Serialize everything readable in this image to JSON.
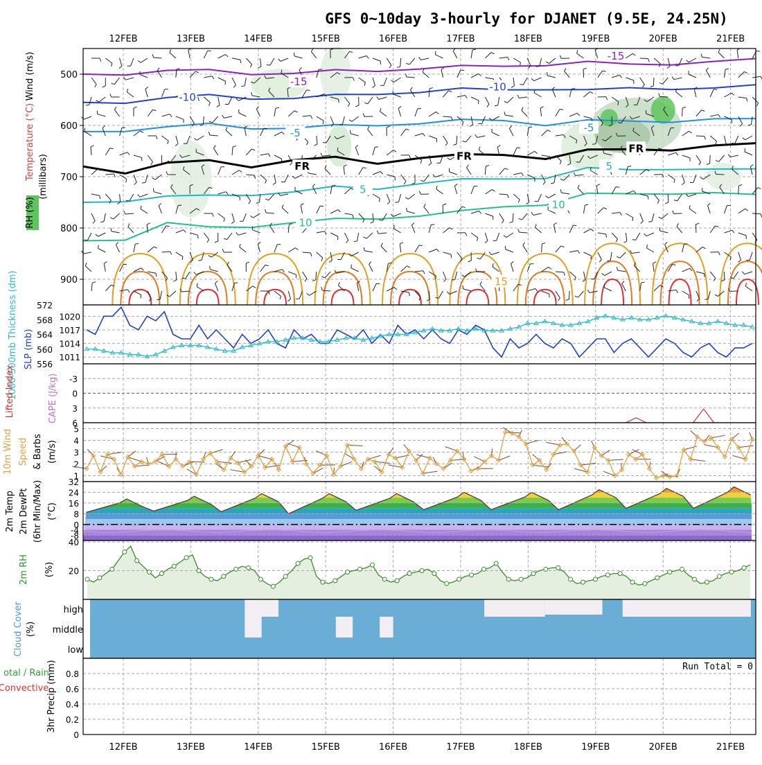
{
  "title": "GFS 0~10day 3-hourly for DJANET (9.5E, 24.25N)",
  "colors": {
    "frame": "#000000",
    "grid": "#a8a8a8",
    "slp": "#1f3fd0",
    "thickness": "#2bbcc8",
    "wind10m": "#e0a040",
    "barb": "#7a4a2a",
    "rh2m_line": "#3a8a2a",
    "rh2m_fill": "#e4efe0",
    "cloud": "#6aaed6",
    "cloud_gap": "#f2eef4",
    "lifted": "#d03030",
    "cape": "#c070c8",
    "precip_total": "#30a030",
    "precip_conv": "#e03030"
  },
  "chart_data": [
    {
      "panel": "upper-air",
      "type": "contour",
      "ylabel": "(millibars)",
      "left_labels": [
        "Wind (m/s)",
        "Temperature (°C)",
        "RH (%)"
      ],
      "yticks": [
        500,
        600,
        700,
        800,
        900
      ],
      "ylim": [
        450,
        950
      ],
      "xticks": [
        "12FEB",
        "13FEB",
        "14FEB",
        "15FEB",
        "16FEB",
        "17FEB",
        "18FEB",
        "19FEB",
        "20FEB",
        "21FEB"
      ],
      "contour_labels": [
        {
          "text": "-15",
          "day": 2.6,
          "p": 515,
          "color": "#8a20c0"
        },
        {
          "text": "-15",
          "day": 7.3,
          "p": 465,
          "color": "#8a20c0"
        },
        {
          "text": "-10",
          "day": 0.95,
          "p": 545,
          "color": "#2040d0"
        },
        {
          "text": "-10",
          "day": 5.55,
          "p": 525,
          "color": "#2040d0"
        },
        {
          "text": "-5",
          "day": 2.55,
          "p": 615,
          "color": "#1e90e0"
        },
        {
          "text": "-5",
          "day": 6.9,
          "p": 605,
          "color": "#1e90e0"
        },
        {
          "text": "FR",
          "day": 2.65,
          "p": 680,
          "color": "#000000"
        },
        {
          "text": "FR",
          "day": 5.05,
          "p": 660,
          "color": "#000000"
        },
        {
          "text": "FR",
          "day": 7.6,
          "p": 645,
          "color": "#000000"
        },
        {
          "text": "5",
          "day": 3.55,
          "p": 725,
          "color": "#20b8c0"
        },
        {
          "text": "5",
          "day": 7.2,
          "p": 680,
          "color": "#20b8c0"
        },
        {
          "text": "10",
          "day": 2.7,
          "p": 790,
          "color": "#20c090"
        },
        {
          "text": "10",
          "day": 6.45,
          "p": 755,
          "color": "#20c090"
        },
        {
          "text": "15",
          "day": 5.6,
          "p": 905,
          "color": "#e0a020"
        }
      ],
      "isotherms": [
        {
          "name": "-15",
          "color": "#8a20c0",
          "p": [
            500,
            498,
            495,
            493,
            497,
            499,
            495,
            492,
            488,
            487,
            484,
            480,
            478,
            482,
            478,
            476,
            473
          ]
        },
        {
          "name": "-10",
          "color": "#2040d0",
          "p": [
            555,
            553,
            548,
            542,
            545,
            548,
            543,
            537,
            534,
            531,
            530,
            527,
            533,
            528,
            526,
            528,
            524
          ]
        },
        {
          "name": "-5",
          "color": "#1e90e0",
          "p": [
            612,
            608,
            605,
            598,
            603,
            606,
            602,
            598,
            595,
            592,
            590,
            597,
            592,
            593,
            590,
            588,
            590
          ]
        },
        {
          "name": "FR",
          "color": "#000000",
          "p": [
            680,
            690,
            675,
            670,
            678,
            668,
            665,
            672,
            662,
            660,
            657,
            662,
            650,
            648,
            645,
            640,
            638
          ]
        },
        {
          "name": "5",
          "color": "#20b8c0",
          "p": [
            750,
            745,
            740,
            738,
            733,
            730,
            722,
            722,
            712,
            708,
            704,
            700,
            685,
            688,
            682,
            686,
            688
          ]
        },
        {
          "name": "10",
          "color": "#20c090",
          "p": [
            825,
            820,
            792,
            800,
            795,
            790,
            785,
            780,
            775,
            770,
            758,
            752,
            735,
            735,
            730,
            732,
            738
          ]
        }
      ]
    },
    {
      "panel": "slp-thickness",
      "type": "line",
      "series": [
        {
          "name": "SLP (mb)",
          "yticks": [
            1011,
            1014,
            1017,
            1020
          ],
          "ylim": [
            1009.5,
            1022.5
          ],
          "values": [
            1017,
            1016,
            1020,
            1020,
            1022,
            1018,
            1017,
            1020,
            1019,
            1021,
            1016,
            1015,
            1015,
            1018,
            1015,
            1017,
            1015,
            1013,
            1016,
            1014,
            1015,
            1017,
            1014,
            1013,
            1017,
            1015,
            1016,
            1014,
            1014,
            1017,
            1016,
            1015,
            1017,
            1014,
            1016,
            1014,
            1018,
            1016,
            1017,
            1015,
            1017,
            1015,
            1014,
            1017,
            1016,
            1018,
            1017,
            1013,
            1011,
            1015,
            1013,
            1014,
            1016,
            1014,
            1013,
            1015,
            1014,
            1011,
            1013,
            1015,
            1015,
            1012,
            1014,
            1015,
            1013,
            1011,
            1013,
            1015,
            1014,
            1012,
            1011,
            1013,
            1014,
            1012,
            1011,
            1013,
            1013,
            1014
          ]
        },
        {
          "name": "1000-500mb Thickness (dm)",
          "yticks": [
            556,
            560,
            564,
            568,
            572
          ],
          "ylim": [
            556,
            572
          ],
          "values": [
            560,
            560,
            559.5,
            559,
            559,
            558.5,
            558.5,
            558,
            558.5,
            559.5,
            560.5,
            561,
            561,
            561,
            560.5,
            560,
            559.5,
            559.5,
            560.5,
            561,
            561.5,
            562,
            562,
            562.5,
            563,
            563,
            562.5,
            562,
            562,
            562.5,
            563,
            563,
            562.5,
            563,
            563.5,
            564,
            564,
            564,
            564.5,
            565,
            565.5,
            565,
            565,
            565.5,
            565,
            565.5,
            565,
            565,
            565,
            565.5,
            566,
            567,
            567,
            567.5,
            567,
            566.5,
            566.5,
            567,
            567.5,
            568.5,
            569,
            568.5,
            568,
            568.5,
            568,
            568,
            568.5,
            569,
            568.5,
            568,
            567.5,
            567,
            567,
            567.5,
            567,
            566.5,
            566.5,
            566
          ]
        }
      ]
    },
    {
      "panel": "lifted-cape",
      "type": "line",
      "series": [
        {
          "name": "Lifted Index",
          "ytick_labels": [
            "-3",
            "0",
            "3",
            "6"
          ],
          "ylim": [
            -6,
            6
          ]
        },
        {
          "name": "CAPE (J/kg)"
        }
      ]
    },
    {
      "panel": "wind10m",
      "type": "line",
      "ylabel": "(m/s)",
      "left_labels": [
        "10m Wind",
        "Speed",
        "& Barbs"
      ],
      "yticks": [
        1,
        2,
        3,
        4,
        5
      ],
      "ylim": [
        0.5,
        5.5
      ],
      "values": [
        1.6,
        2.7,
        1.3,
        2.8,
        2.4,
        1.1,
        2.6,
        1.8,
        2.2,
        2.0,
        2.2,
        2.8,
        1.8,
        2.4,
        1.8,
        2.2,
        1.1,
        2.4,
        2.9,
        2.2,
        1.5,
        2.5,
        2.1,
        1.3,
        1.8,
        2.7,
        1.7,
        2.4,
        1.5,
        3.5,
        2.2,
        3.4,
        2.0,
        1.2,
        1.9,
        2.7,
        1.1,
        1.8,
        3.6,
        2.4,
        1.6,
        2.4,
        2.2,
        1.3,
        2.8,
        2.5,
        1.7,
        3.1,
        2.3,
        1.2,
        2.5,
        2.0,
        1.6,
        2.3,
        3.1,
        2.4,
        1.4,
        1.6,
        2.2,
        2.7,
        2.3,
        4.7,
        4.6,
        4.3,
        3.7,
        1.9,
        2.3,
        1.5,
        2.8,
        3.6,
        3.7,
        3.1,
        1.9,
        1.3,
        3.4,
        2.7,
        2.3,
        1.0,
        1.5,
        2.8,
        2.4,
        2.8,
        1.6,
        0.8,
        1.0,
        0.9,
        1.0,
        3.2,
        2.4,
        4.3,
        3.9,
        4.2,
        3.4,
        2.6,
        4.1,
        3.4,
        2.4,
        4.1
      ]
    },
    {
      "panel": "temperature",
      "type": "area",
      "ylabel": "(°C)",
      "left_labels": [
        "2m Temp",
        "2m DewPt",
        "(6hr Min/Max)"
      ],
      "yticks": [
        -8,
        0,
        8,
        16,
        24,
        32
      ],
      "ytick_labels": [
        "-8",
        "0",
        "8",
        "16",
        "24",
        "32"
      ],
      "extra_tick_labels": [
        "-4"
      ],
      "ylim": [
        -12,
        32
      ],
      "temp_min": [
        9,
        10,
        9.5,
        8,
        10.5,
        11,
        11,
        11,
        12
      ],
      "temp_max": [
        19,
        21,
        23,
        23,
        23,
        24,
        24,
        26,
        27,
        28
      ],
      "dewpoint": -5
    },
    {
      "panel": "rh2m",
      "type": "area",
      "ylabel": "(%)",
      "left_labels": [
        "2m RH"
      ],
      "yticks": [
        20,
        40
      ],
      "ylim": [
        0,
        40
      ],
      "values": [
        14,
        12,
        15,
        18,
        21,
        27,
        33,
        37,
        27,
        23,
        19,
        15,
        18,
        21,
        23,
        26,
        29,
        31,
        20,
        16,
        14,
        13,
        16,
        19,
        21,
        23,
        22,
        20,
        14,
        11,
        9,
        12,
        16,
        20,
        25,
        28,
        29,
        16,
        12,
        11,
        13,
        16,
        19,
        20,
        21,
        22,
        24,
        17,
        14,
        12,
        13,
        16,
        18,
        19,
        20,
        21,
        18,
        13,
        11,
        12,
        14,
        16,
        17,
        18,
        21,
        22,
        25,
        19,
        14,
        13,
        14,
        15,
        18,
        20,
        21,
        22,
        22,
        19,
        14,
        11,
        12,
        13,
        14,
        16,
        17,
        18,
        18,
        16,
        12,
        10,
        11,
        13,
        15,
        17,
        19,
        20,
        21,
        17,
        14,
        11,
        12,
        13,
        16,
        18,
        19,
        20,
        22,
        24
      ]
    },
    {
      "panel": "cloud",
      "type": "area",
      "ylabel": "(%)",
      "left_labels": [
        "Cloud Cover"
      ],
      "level_labels": [
        "high",
        "middle",
        "low"
      ]
    },
    {
      "panel": "precip",
      "type": "bar",
      "ylabel": "3hr Precip (mm)",
      "left_labels": [
        "otal / Rain",
        "Convective"
      ],
      "yticks": [
        0,
        0.2,
        0.4,
        0.6,
        0.8
      ],
      "ytick_labels": [
        "0",
        "0.2",
        "0.4",
        "0.6",
        "0.8"
      ],
      "ylim": [
        0,
        1.0
      ],
      "values": [],
      "run_total": "Run Total = 0",
      "xticks": [
        "12FEB",
        "13FEB",
        "14FEB",
        "15FEB",
        "16FEB",
        "17FEB",
        "18FEB",
        "19FEB",
        "20FEB",
        "21FEB"
      ]
    }
  ]
}
